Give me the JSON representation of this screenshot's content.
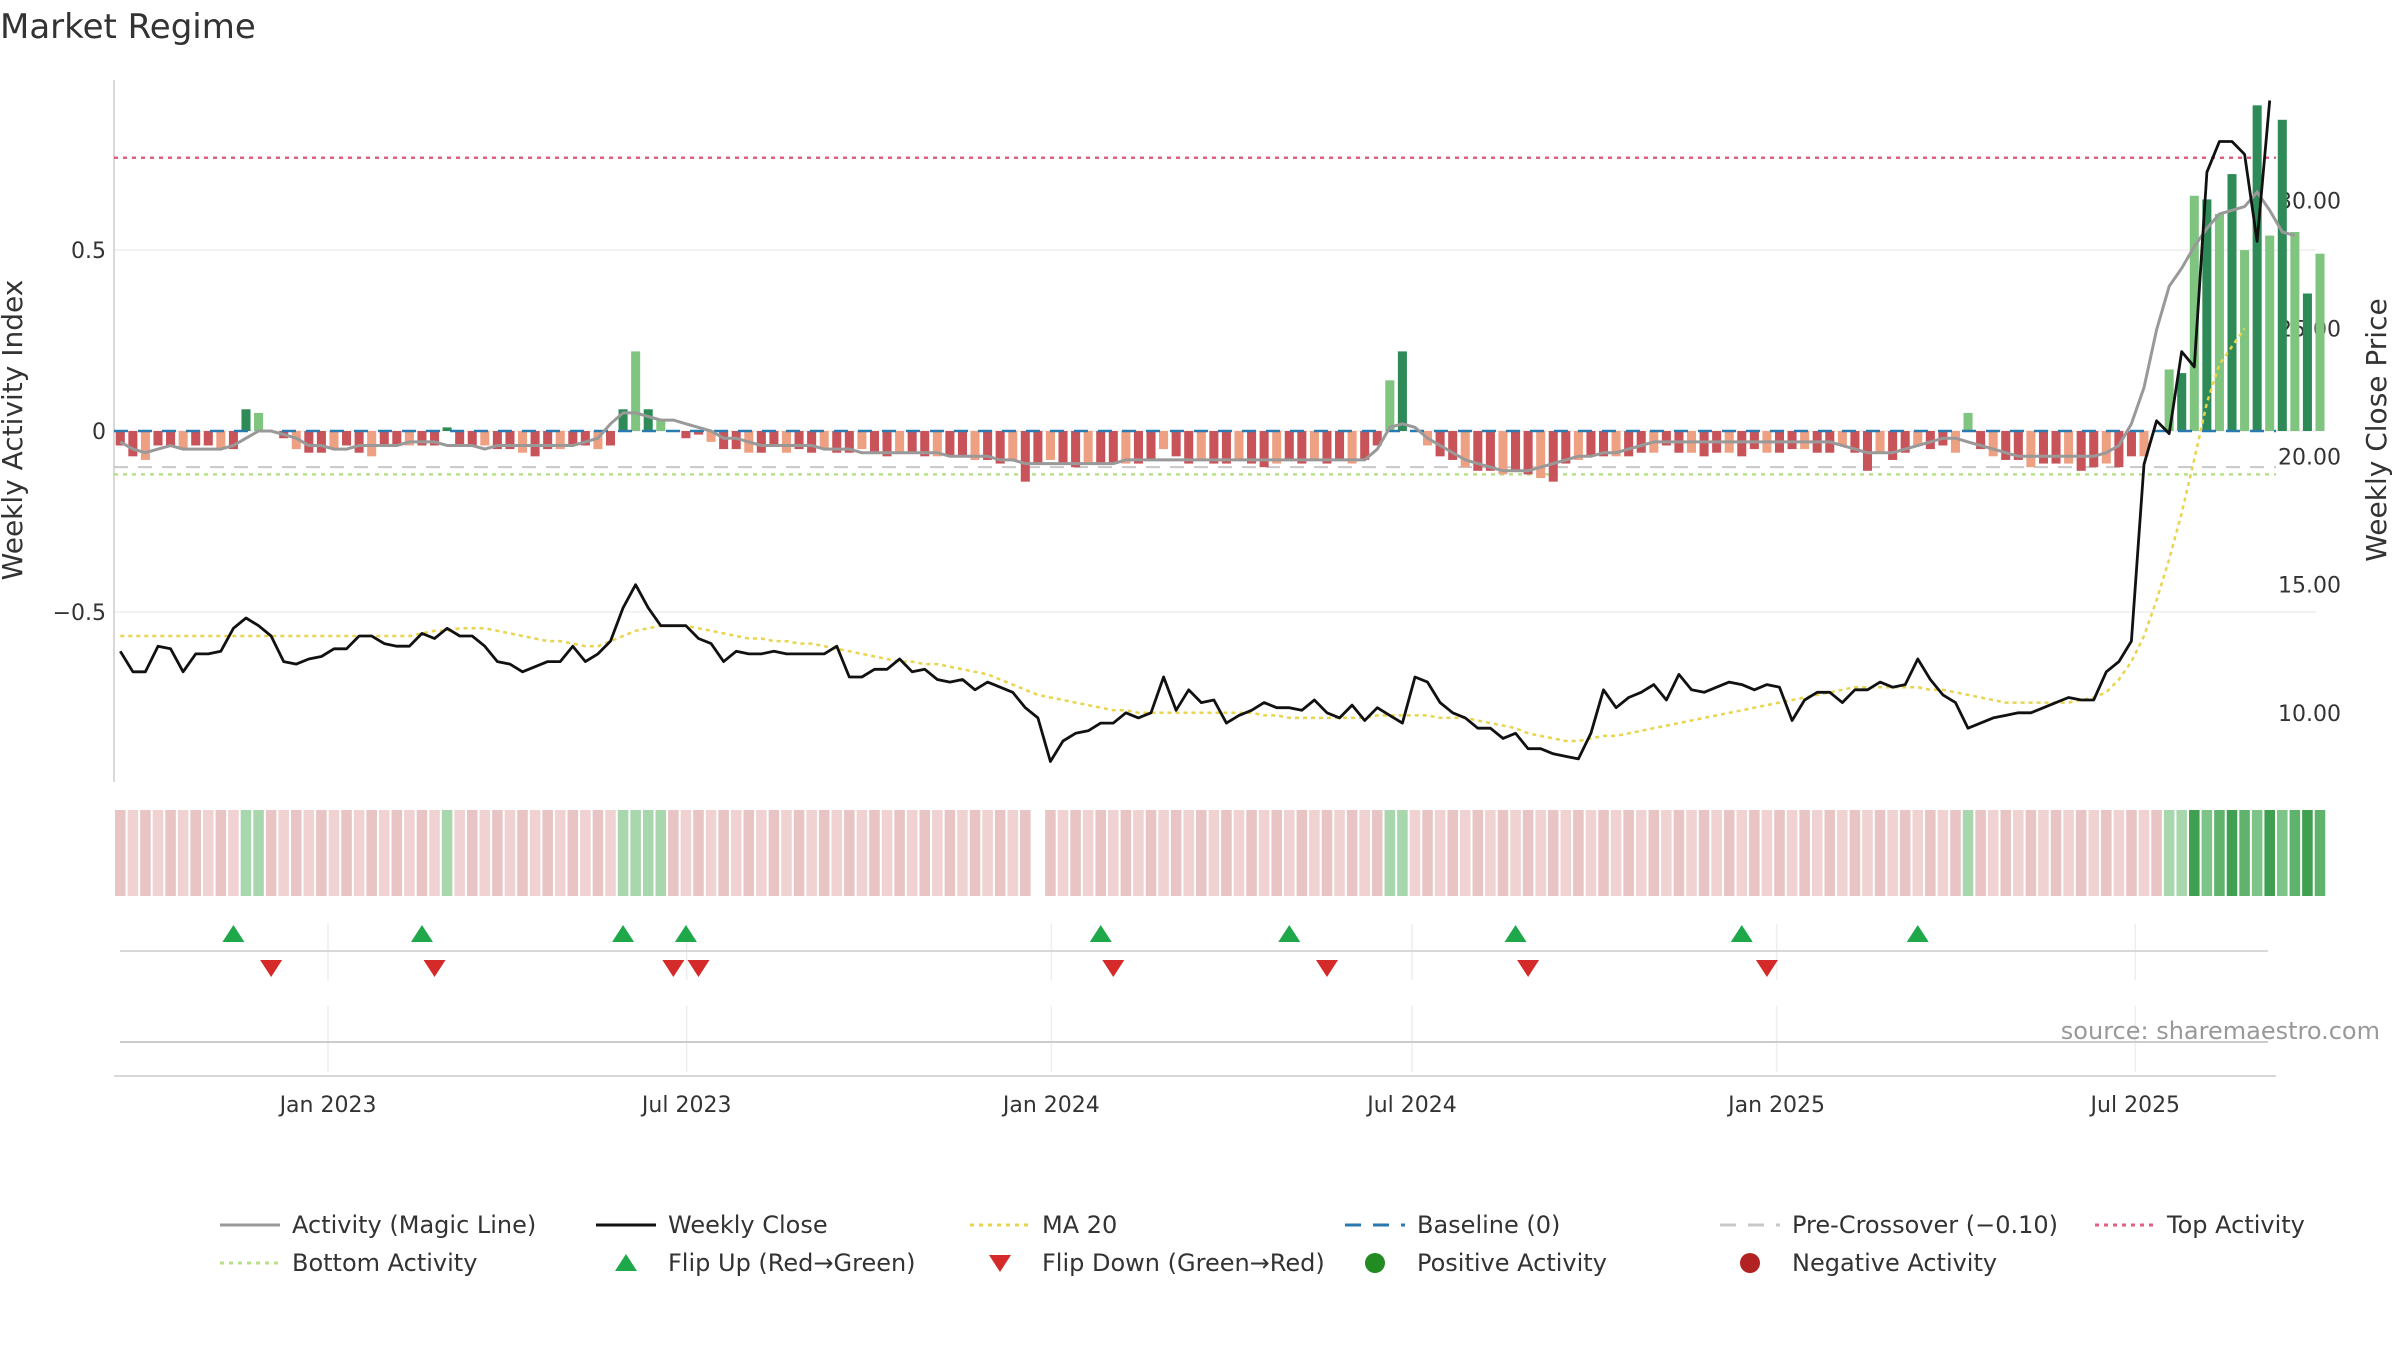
{
  "title": "Market Regime",
  "source": "source: sharemaestro.com",
  "colors": {
    "pos_dark": "#2e8b57",
    "pos_light": "#7fc47f",
    "neg_dark": "#c8545a",
    "neg_light": "#eea083",
    "activity": "#999999",
    "close": "#111111",
    "ma": "#e8d44d",
    "baseline": "#2a7ab0",
    "pre": "#c8c8c8",
    "top": "#e06080",
    "bottom": "#b8e08a",
    "flip_up": "#1fa84a",
    "flip_down": "#d42a2a",
    "pos_dot": "#228b22",
    "neg_dot": "#b22222"
  },
  "chart_data": {
    "type": "bar+line",
    "title": "Market Regime",
    "x_ticks": [
      "Jan 2023",
      "Jul 2023",
      "Jan 2024",
      "Jul 2024",
      "Jan 2025",
      "Jul 2025"
    ],
    "x_range": [
      "2022-09-15",
      "2025-09-10"
    ],
    "left_axis": {
      "label": "Weekly Activity Index",
      "ticks": [
        "0.5",
        "0",
        "−0.5"
      ],
      "tick_values": [
        0.5,
        0,
        -0.5
      ],
      "range": [
        -0.97,
        0.97
      ]
    },
    "right_axis": {
      "label": "Weekly Close Price",
      "ticks": [
        "30.00",
        "25.00",
        "20.00",
        "15.00",
        "10.00"
      ],
      "tick_values": [
        30,
        25,
        20,
        15,
        10
      ],
      "range": [
        7.3,
        34.7
      ]
    },
    "reference_lines": {
      "baseline": 0,
      "pre_crossover": -0.1,
      "top_activity": 0.755,
      "bottom_activity": -0.12
    },
    "weekly_close": [
      12.4,
      11.6,
      11.6,
      12.6,
      12.5,
      11.6,
      12.3,
      12.3,
      12.4,
      13.3,
      13.7,
      13.4,
      13.0,
      12.0,
      11.9,
      12.1,
      12.2,
      12.5,
      12.5,
      13.0,
      13.0,
      12.7,
      12.6,
      12.6,
      13.1,
      12.9,
      13.3,
      13.0,
      13.0,
      12.6,
      12.0,
      11.9,
      11.6,
      11.8,
      12.0,
      12.0,
      12.6,
      12.0,
      12.3,
      12.8,
      14.1,
      15.0,
      14.1,
      13.4,
      13.4,
      13.4,
      12.9,
      12.7,
      12.0,
      12.4,
      12.3,
      12.3,
      12.4,
      12.3,
      12.3,
      12.3,
      12.3,
      12.6,
      11.4,
      11.4,
      11.7,
      11.7,
      12.1,
      11.6,
      11.7,
      11.3,
      11.2,
      11.3,
      10.9,
      11.2,
      11.0,
      10.8,
      10.2,
      9.8,
      8.1,
      8.9,
      9.2,
      9.3,
      9.6,
      9.6,
      10.0,
      9.8,
      10.0,
      11.4,
      10.1,
      10.9,
      10.4,
      10.5,
      9.6,
      9.9,
      10.1,
      10.4,
      10.2,
      10.2,
      10.1,
      10.5,
      10.0,
      9.8,
      10.3,
      9.7,
      10.2,
      9.9,
      9.6,
      11.4,
      11.2,
      10.4,
      10.0,
      9.8,
      9.4,
      9.4,
      9.0,
      9.2,
      8.6,
      8.6,
      8.4,
      8.3,
      8.2,
      9.2,
      10.9,
      10.2,
      10.6,
      10.8,
      11.1,
      10.5,
      11.5,
      10.9,
      10.8,
      11.0,
      11.2,
      11.1,
      10.9,
      11.1,
      11.0,
      9.7,
      10.5,
      10.8,
      10.8,
      10.4,
      10.9,
      10.9,
      11.2,
      11.0,
      11.1,
      12.1,
      11.3,
      10.7,
      10.4,
      9.4,
      9.6,
      9.8,
      9.9,
      10.0,
      10.0,
      10.2,
      10.4,
      10.6,
      10.5,
      10.5,
      11.6,
      12.0,
      12.8,
      19.7,
      21.4,
      20.9,
      24.1,
      23.5,
      31.1,
      32.3,
      32.3,
      31.8,
      28.4,
      33.9
    ],
    "ma20": [
      13.0,
      13.0,
      13.0,
      13.0,
      13.0,
      13.0,
      13.0,
      13.0,
      13.0,
      13.0,
      13.0,
      13.0,
      13.0,
      13.0,
      13.0,
      13.0,
      13.0,
      13.0,
      13.0,
      13.0,
      13.0,
      13.0,
      13.0,
      13.0,
      13.1,
      13.2,
      13.2,
      13.3,
      13.3,
      13.3,
      13.2,
      13.1,
      13.0,
      12.9,
      12.8,
      12.8,
      12.7,
      12.6,
      12.6,
      12.8,
      13.0,
      13.2,
      13.3,
      13.4,
      13.4,
      13.4,
      13.3,
      13.2,
      13.1,
      13.0,
      12.9,
      12.9,
      12.8,
      12.8,
      12.7,
      12.7,
      12.6,
      12.5,
      12.4,
      12.3,
      12.2,
      12.1,
      12.0,
      12.0,
      11.9,
      11.9,
      11.8,
      11.7,
      11.6,
      11.5,
      11.3,
      11.1,
      10.9,
      10.7,
      10.6,
      10.5,
      10.4,
      10.3,
      10.2,
      10.1,
      10.1,
      10.0,
      10.0,
      10.0,
      10.0,
      10.0,
      10.0,
      10.0,
      10.0,
      10.0,
      10.0,
      9.9,
      9.9,
      9.8,
      9.8,
      9.8,
      9.8,
      9.8,
      9.8,
      9.8,
      9.9,
      9.9,
      9.9,
      9.9,
      9.9,
      9.8,
      9.8,
      9.8,
      9.7,
      9.6,
      9.5,
      9.4,
      9.2,
      9.1,
      9.0,
      8.9,
      8.9,
      9.0,
      9.1,
      9.1,
      9.2,
      9.3,
      9.4,
      9.5,
      9.6,
      9.7,
      9.8,
      9.9,
      10.0,
      10.1,
      10.2,
      10.3,
      10.4,
      10.5,
      10.6,
      10.7,
      10.8,
      10.9,
      11.0,
      11.0,
      11.0,
      11.0,
      11.0,
      11.0,
      10.9,
      10.9,
      10.8,
      10.7,
      10.6,
      10.5,
      10.4,
      10.4,
      10.4,
      10.4,
      10.4,
      10.4,
      10.5,
      10.6,
      10.8,
      11.3,
      12.0,
      13.0,
      14.4,
      16.0,
      17.8,
      19.9,
      22.1,
      23.6,
      24.3,
      25.0
    ],
    "activity_line": [
      -0.03,
      -0.05,
      -0.06,
      -0.05,
      -0.04,
      -0.05,
      -0.05,
      -0.05,
      -0.05,
      -0.04,
      -0.02,
      0.0,
      0.0,
      -0.01,
      -0.02,
      -0.04,
      -0.04,
      -0.05,
      -0.05,
      -0.04,
      -0.04,
      -0.04,
      -0.04,
      -0.03,
      -0.03,
      -0.03,
      -0.04,
      -0.04,
      -0.04,
      -0.05,
      -0.04,
      -0.04,
      -0.04,
      -0.04,
      -0.04,
      -0.04,
      -0.04,
      -0.03,
      -0.02,
      0.02,
      0.05,
      0.05,
      0.04,
      0.03,
      0.03,
      0.02,
      0.01,
      0.0,
      -0.02,
      -0.02,
      -0.03,
      -0.04,
      -0.04,
      -0.04,
      -0.04,
      -0.04,
      -0.05,
      -0.05,
      -0.05,
      -0.06,
      -0.06,
      -0.06,
      -0.06,
      -0.06,
      -0.06,
      -0.06,
      -0.07,
      -0.07,
      -0.07,
      -0.07,
      -0.08,
      -0.08,
      -0.09,
      -0.09,
      -0.09,
      -0.09,
      -0.09,
      -0.09,
      -0.09,
      -0.09,
      -0.08,
      -0.08,
      -0.08,
      -0.08,
      -0.08,
      -0.08,
      -0.08,
      -0.08,
      -0.08,
      -0.08,
      -0.08,
      -0.08,
      -0.08,
      -0.08,
      -0.08,
      -0.08,
      -0.08,
      -0.08,
      -0.08,
      -0.08,
      -0.05,
      0.01,
      0.02,
      0.01,
      -0.02,
      -0.04,
      -0.06,
      -0.08,
      -0.09,
      -0.1,
      -0.11,
      -0.11,
      -0.11,
      -0.1,
      -0.09,
      -0.08,
      -0.07,
      -0.07,
      -0.06,
      -0.06,
      -0.05,
      -0.04,
      -0.03,
      -0.03,
      -0.03,
      -0.03,
      -0.03,
      -0.03,
      -0.03,
      -0.03,
      -0.03,
      -0.03,
      -0.03,
      -0.03,
      -0.03,
      -0.03,
      -0.03,
      -0.04,
      -0.05,
      -0.06,
      -0.06,
      -0.06,
      -0.05,
      -0.04,
      -0.03,
      -0.02,
      -0.02,
      -0.03,
      -0.04,
      -0.05,
      -0.06,
      -0.07,
      -0.07,
      -0.07,
      -0.07,
      -0.07,
      -0.07,
      -0.07,
      -0.06,
      -0.04,
      0.02,
      0.12,
      0.28,
      0.4,
      0.45,
      0.51,
      0.56,
      0.6,
      0.61,
      0.62,
      0.66,
      0.61,
      0.55,
      0.54
    ],
    "activity_bars": [
      -0.04,
      -0.07,
      -0.08,
      -0.04,
      -0.04,
      -0.05,
      -0.04,
      -0.04,
      -0.05,
      -0.05,
      0.06,
      0.05,
      0.0,
      -0.02,
      -0.05,
      -0.06,
      -0.06,
      -0.05,
      -0.04,
      -0.06,
      -0.07,
      -0.04,
      -0.04,
      -0.04,
      -0.04,
      -0.04,
      0.01,
      -0.04,
      -0.04,
      -0.04,
      -0.05,
      -0.05,
      -0.06,
      -0.07,
      -0.05,
      -0.05,
      -0.04,
      -0.04,
      -0.05,
      -0.04,
      0.06,
      0.22,
      0.06,
      0.03,
      0.0,
      -0.02,
      -0.01,
      -0.03,
      -0.05,
      -0.05,
      -0.06,
      -0.06,
      -0.04,
      -0.06,
      -0.05,
      -0.06,
      -0.05,
      -0.06,
      -0.06,
      -0.05,
      -0.06,
      -0.07,
      -0.06,
      -0.06,
      -0.07,
      -0.07,
      -0.07,
      -0.07,
      -0.08,
      -0.08,
      -0.09,
      -0.08,
      -0.14,
      -0.09,
      -0.08,
      -0.09,
      -0.1,
      -0.09,
      -0.09,
      -0.09,
      -0.09,
      -0.09,
      -0.08,
      -0.05,
      -0.07,
      -0.09,
      -0.08,
      -0.09,
      -0.09,
      -0.08,
      -0.09,
      -0.1,
      -0.09,
      -0.08,
      -0.09,
      -0.08,
      -0.09,
      -0.08,
      -0.09,
      -0.08,
      -0.04,
      0.14,
      0.22,
      0.0,
      -0.04,
      -0.07,
      -0.08,
      -0.1,
      -0.11,
      -0.11,
      -0.12,
      -0.11,
      -0.12,
      -0.13,
      -0.14,
      -0.09,
      -0.08,
      -0.07,
      -0.07,
      -0.07,
      -0.07,
      -0.06,
      -0.06,
      -0.04,
      -0.06,
      -0.06,
      -0.07,
      -0.06,
      -0.06,
      -0.07,
      -0.05,
      -0.06,
      -0.06,
      -0.05,
      -0.05,
      -0.06,
      -0.06,
      -0.04,
      -0.06,
      -0.11,
      -0.06,
      -0.08,
      -0.06,
      -0.04,
      -0.05,
      -0.04,
      -0.06,
      0.05,
      -0.05,
      -0.07,
      -0.08,
      -0.08,
      -0.1,
      -0.09,
      -0.09,
      -0.09,
      -0.11,
      -0.1,
      -0.09,
      -0.1,
      -0.07,
      -0.07,
      0.0,
      0.17,
      0.16,
      0.65,
      0.64,
      0.6,
      0.71,
      0.5,
      0.9,
      0.54,
      0.86,
      0.55,
      0.38,
      0.49
    ],
    "flip_up_weeks": [
      9,
      24,
      40,
      45,
      78,
      93,
      111,
      129,
      143
    ],
    "flip_down_weeks": [
      12,
      25,
      44,
      46,
      79,
      96,
      112,
      131
    ],
    "regime_gap_week": 73
  },
  "legend": [
    {
      "label": "Activity (Magic Line)",
      "kind": "solid",
      "color": "#999999"
    },
    {
      "label": "Weekly Close",
      "kind": "solid",
      "color": "#111111"
    },
    {
      "label": "MA 20",
      "kind": "dotted",
      "color": "#e8d44d"
    },
    {
      "label": "Baseline (0)",
      "kind": "dashed",
      "color": "#2a7ab0"
    },
    {
      "label": "Pre-Crossover (−0.10)",
      "kind": "dashed",
      "color": "#c8c8c8"
    },
    {
      "label": "Top Activity",
      "kind": "dotted",
      "color": "#e06080"
    },
    {
      "label": "Bottom Activity",
      "kind": "dotted",
      "color": "#b8e08a"
    },
    {
      "label": "Flip Up (Red→Green)",
      "kind": "tri-up",
      "color": "#1fa84a"
    },
    {
      "label": "Flip Down (Green→Red)",
      "kind": "tri-down",
      "color": "#d42a2a"
    },
    {
      "label": "Positive Activity",
      "kind": "dot",
      "color": "#228b22"
    },
    {
      "label": "Negative Activity",
      "kind": "dot",
      "color": "#b22222"
    }
  ]
}
